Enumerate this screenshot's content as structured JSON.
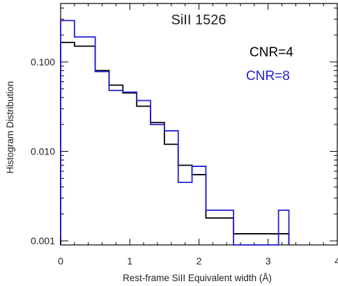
{
  "chart_data": {
    "type": "line",
    "subtype": "step-histogram",
    "title": "SiII 1526",
    "xlabel": "Rest-frame SiII Equivalent width (Å)",
    "ylabel": "Histogram Distribution",
    "xlim": [
      0,
      4
    ],
    "ylim": [
      0.0009,
      0.45
    ],
    "yscale": "log",
    "grid": false,
    "legend_position": "top-right",
    "x_ticks": [
      {
        "value": 0,
        "label": "0"
      },
      {
        "value": 1,
        "label": "1"
      },
      {
        "value": 2,
        "label": "2"
      },
      {
        "value": 3,
        "label": "3"
      },
      {
        "value": 4,
        "label": "4"
      }
    ],
    "y_ticks": [
      {
        "value": 0.1,
        "label": "0.100"
      },
      {
        "value": 0.01,
        "label": "0.010"
      },
      {
        "value": 0.001,
        "label": "0.001"
      }
    ],
    "bin_edges": [
      0,
      0.2,
      0.5,
      0.7,
      0.9,
      1.1,
      1.3,
      1.5,
      1.7,
      1.9,
      2.1,
      2.5,
      3.0,
      3.15,
      3.3
    ],
    "series": [
      {
        "name": "CNR=4",
        "color": "#000000",
        "values": [
          0.165,
          0.15,
          0.08,
          0.055,
          0.045,
          0.032,
          0.021,
          0.012,
          0.007,
          0.0055,
          0.0018,
          0.0012,
          0.0012,
          0.0012
        ]
      },
      {
        "name": "CNR=8",
        "color": "#2020d0",
        "values": [
          0.29,
          0.19,
          0.078,
          0.048,
          0.046,
          0.037,
          0.02,
          0.017,
          0.0045,
          0.0068,
          0.0022,
          0.0009,
          0.0009,
          0.0022
        ]
      }
    ]
  }
}
